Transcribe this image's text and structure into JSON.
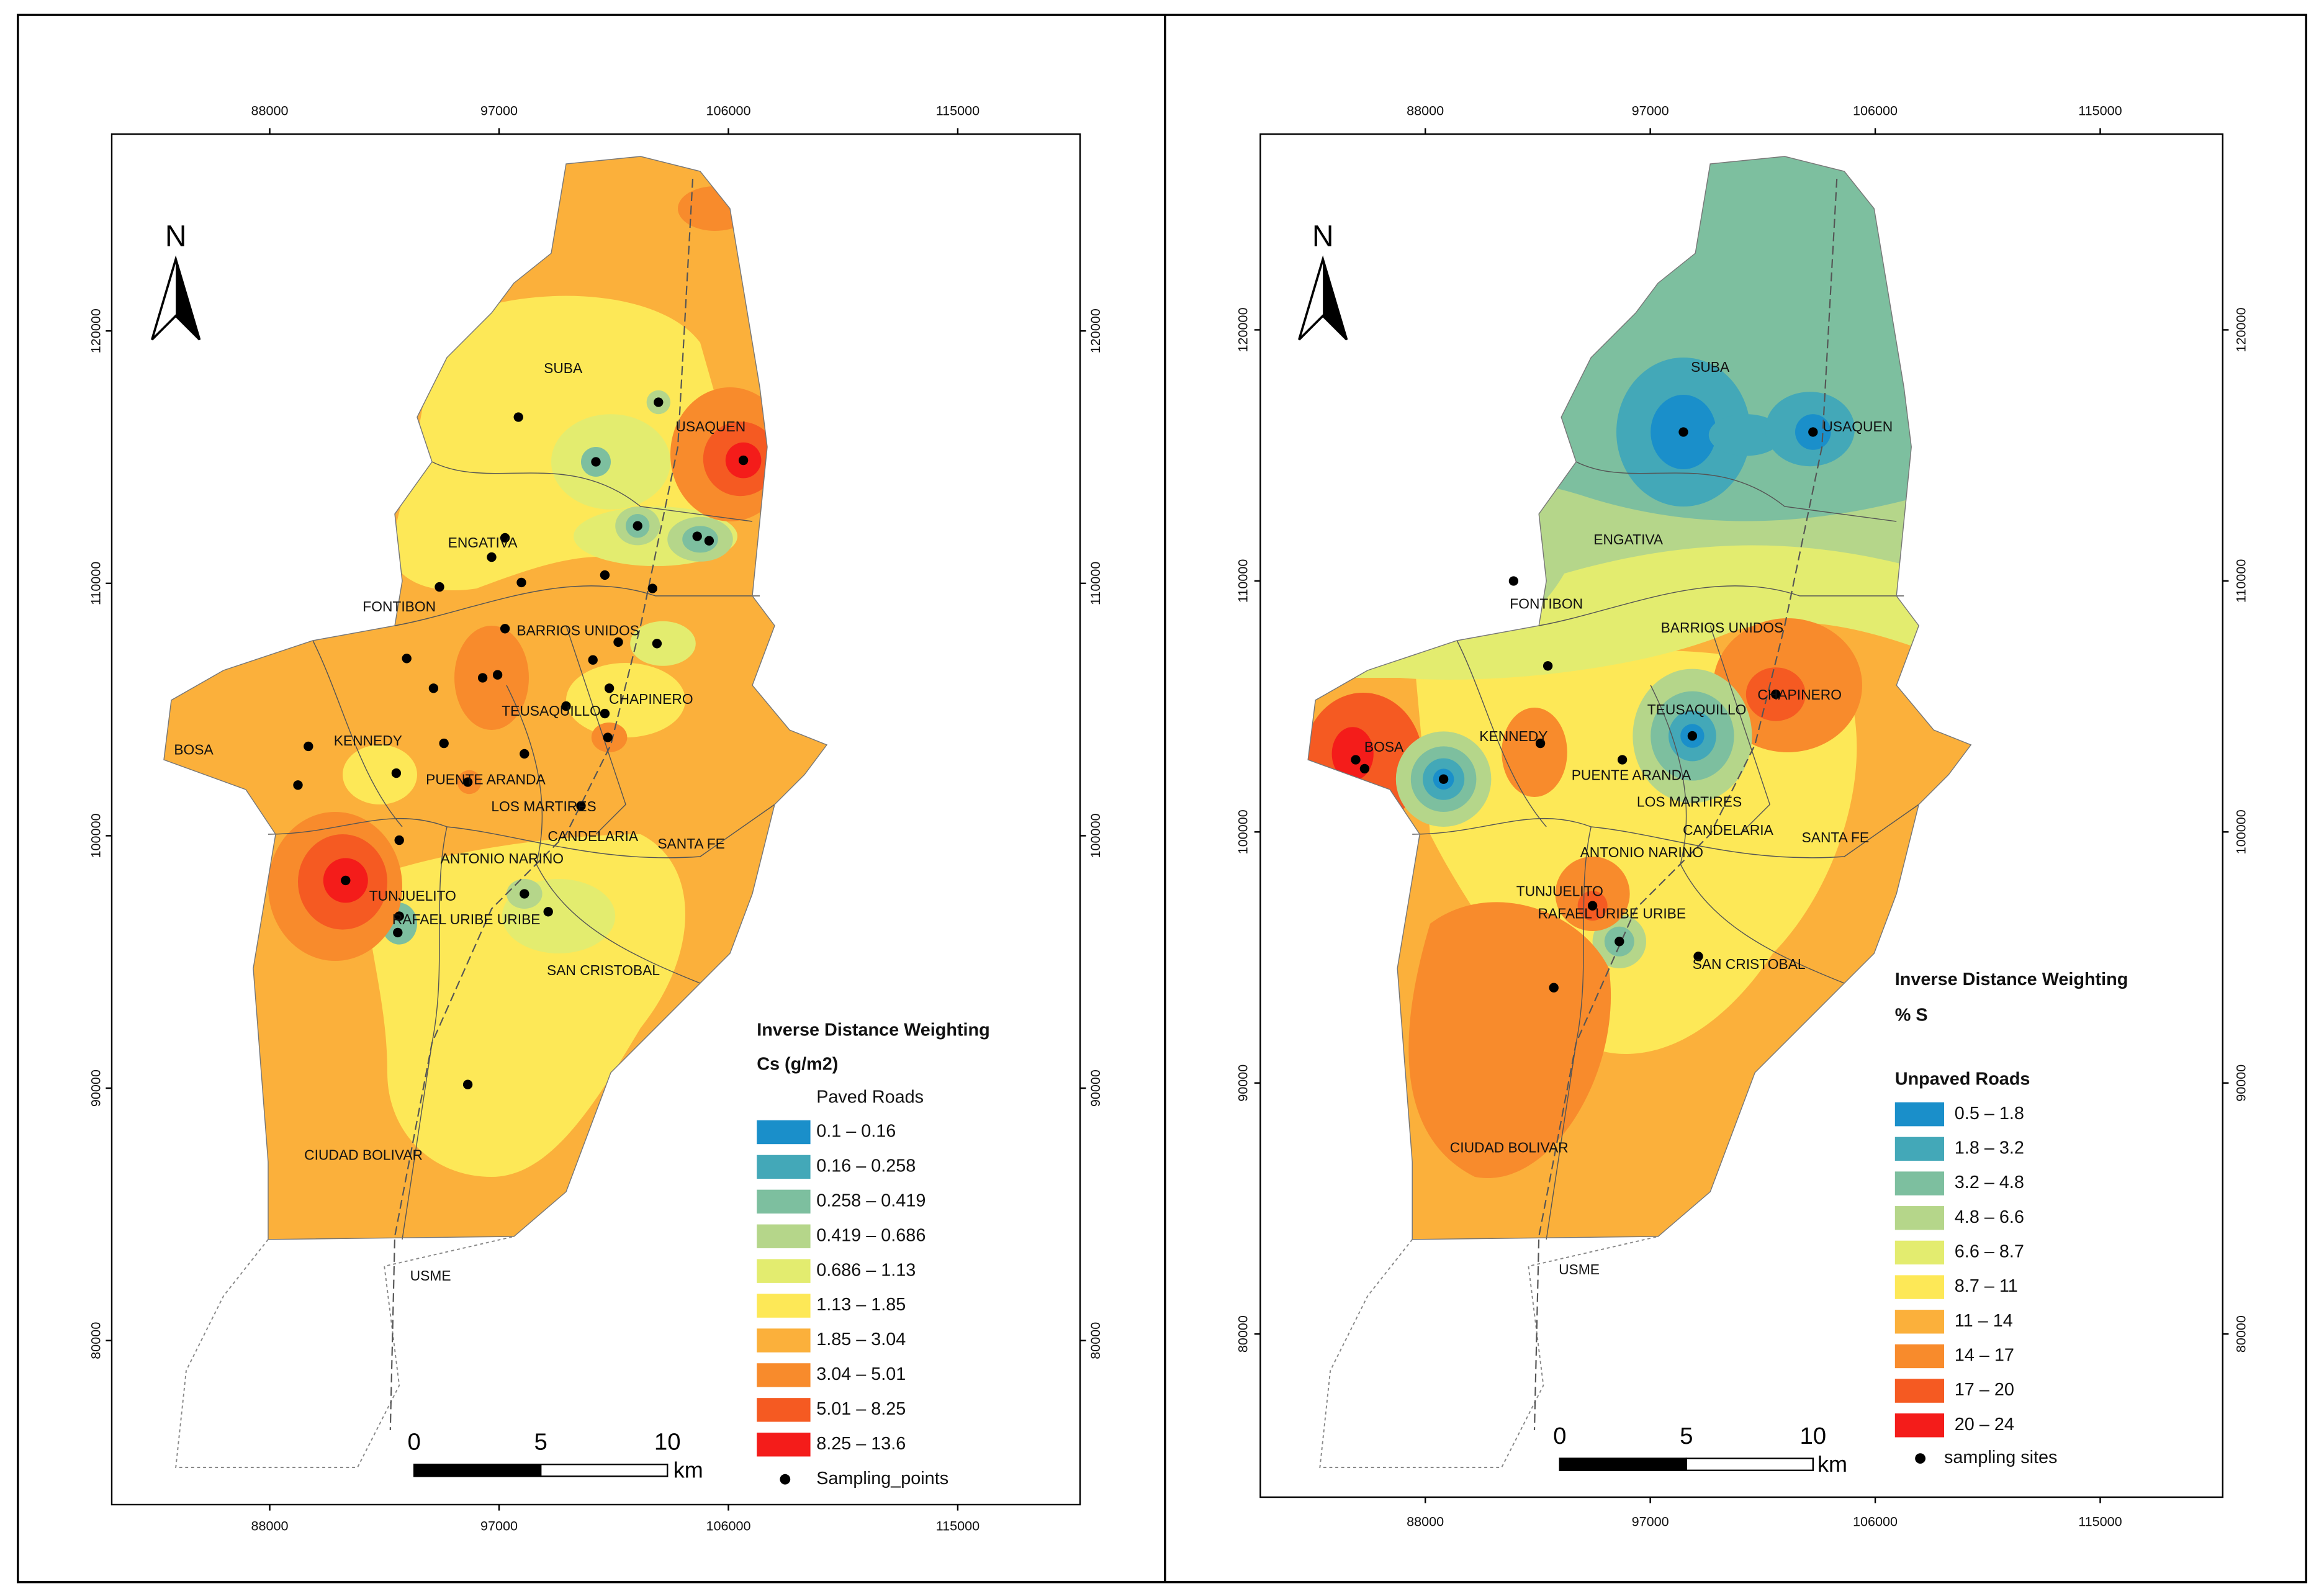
{
  "panels": [
    {
      "north": "N",
      "x_ticks": [
        88000,
        97000,
        106000,
        115000
      ],
      "y_ticks": [
        80000,
        90000,
        100000,
        110000,
        120000
      ],
      "xlim": [
        81800,
        119800
      ],
      "ylim": [
        73500,
        127800
      ],
      "legend": {
        "title": "Inverse Distance Weighting",
        "subtitle": "Cs (g/m2)",
        "group": "Paved Roads",
        "items": [
          {
            "label": "0.1 – 0.16",
            "color": "#1a8fca"
          },
          {
            "label": "0.16 – 0.258",
            "color": "#43a8b8"
          },
          {
            "label": "0.258 – 0.419",
            "color": "#7dbf9f"
          },
          {
            "label": "0.419 – 0.686",
            "color": "#b5d68a"
          },
          {
            "label": "0.686 – 1.13",
            "color": "#e3ec6f"
          },
          {
            "label": "1.13 – 1.85",
            "color": "#fde857"
          },
          {
            "label": "1.85 – 3.04",
            "color": "#fbb03b"
          },
          {
            "label": "3.04 – 5.01",
            "color": "#f88b2c"
          },
          {
            "label": "5.01 – 8.25",
            "color": "#f55a22"
          },
          {
            "label": "8.25 – 13.6",
            "color": "#f41c1a"
          }
        ],
        "points": "Sampling_points"
      },
      "scale_bar": {
        "ticks": [
          0,
          5,
          10
        ],
        "unit": "km"
      },
      "districts": [
        "SUBA",
        "USAQUEN",
        "ENGATIVA",
        "FONTIBON",
        "BARRIOS UNIDOS",
        "CHAPINERO",
        "TEUSAQUILLO",
        "BOSA",
        "KENNEDY",
        "PUENTE ARANDA",
        "LOS MARTIRES",
        "CANDELARIA",
        "SANTA FE",
        "ANTONIO NARINO",
        "TUNJUELITO",
        "RAFAEL URIBE URIBE",
        "SAN CRISTOBAL",
        "CIUDAD BOLIVAR",
        "USME"
      ]
    },
    {
      "north": "N",
      "x_ticks": [
        88000,
        97000,
        106000,
        115000
      ],
      "y_ticks": [
        80000,
        90000,
        100000,
        110000,
        120000
      ],
      "xlim": [
        81400,
        119900
      ],
      "ylim": [
        73500,
        127800
      ],
      "legend": {
        "title": "Inverse Distance Weighting",
        "subtitle": "% S",
        "group": "Unpaved Roads",
        "items": [
          {
            "label": "0.5 – 1.8",
            "color": "#1a8fca"
          },
          {
            "label": "1.8 – 3.2",
            "color": "#43a8b8"
          },
          {
            "label": "3.2 – 4.8",
            "color": "#7dbf9f"
          },
          {
            "label": "4.8 – 6.6",
            "color": "#b5d68a"
          },
          {
            "label": "6.6 – 8.7",
            "color": "#e3ec6f"
          },
          {
            "label": "8.7 – 11",
            "color": "#fde857"
          },
          {
            "label": "11 – 14",
            "color": "#fbb03b"
          },
          {
            "label": "14 – 17",
            "color": "#f88b2c"
          },
          {
            "label": "17 – 20",
            "color": "#f55a22"
          },
          {
            "label": "20 – 24",
            "color": "#f41c1a"
          }
        ],
        "points": "sampling sites"
      },
      "scale_bar": {
        "ticks": [
          0,
          5,
          10
        ],
        "unit": "km"
      },
      "districts": [
        "SUBA",
        "USAQUEN",
        "ENGATIVA",
        "FONTIBON",
        "BARRIOS UNIDOS",
        "CHAPINERO",
        "TEUSAQUILLO",
        "BOSA",
        "KENNEDY",
        "PUENTE ARANDA",
        "LOS MARTIRES",
        "CANDELARIA",
        "SANTA FE",
        "ANTONIO NARINO",
        "TUNJUELITO",
        "RAFAEL URIBE URIBE",
        "SAN CRISTOBAL",
        "CIUDAD BOLIVAR",
        "USME"
      ]
    }
  ]
}
